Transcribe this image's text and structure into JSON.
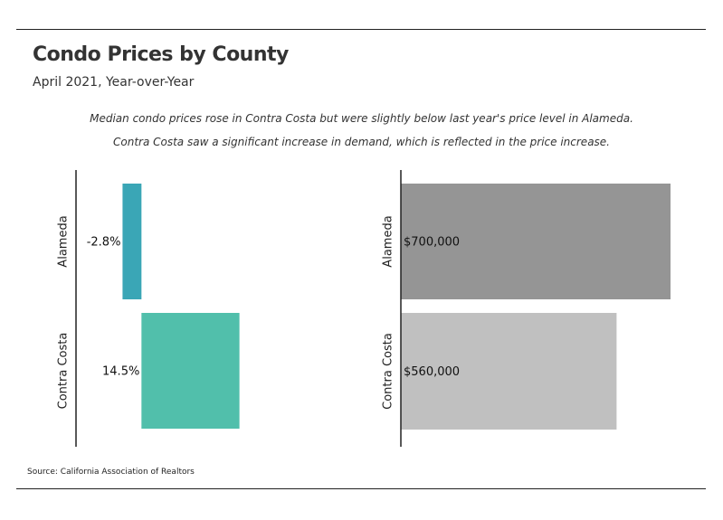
{
  "title": "Condo Prices by County",
  "subtitle": "April 2021, Year-over-Year",
  "note_lines": [
    "Median condo prices rose in Contra Costa but were slightly below last year's price level in Alameda.",
    "Contra Costa saw a significant increase in demand, which is reflected in the price increase."
  ],
  "source": "Source:  California Association of Realtors",
  "colors": {
    "alameda_change": "#3aa6b6",
    "contra_costa_change": "#51bfab",
    "alameda_price": "#959595",
    "contra_costa_price": "#c0c0c0"
  },
  "chart_data": [
    {
      "type": "bar",
      "orientation": "horizontal",
      "categories": [
        "Alameda",
        "Contra Costa"
      ],
      "values": [
        -2.8,
        14.5
      ],
      "labels": [
        "-2.8%",
        "14.5%"
      ],
      "xlim": [
        -5,
        25
      ]
    },
    {
      "type": "bar",
      "orientation": "horizontal",
      "categories": [
        "Alameda",
        "Contra Costa"
      ],
      "values": [
        700000,
        560000
      ],
      "labels": [
        "$700,000",
        "$560,000"
      ],
      "xlim": [
        0,
        700000
      ]
    }
  ]
}
